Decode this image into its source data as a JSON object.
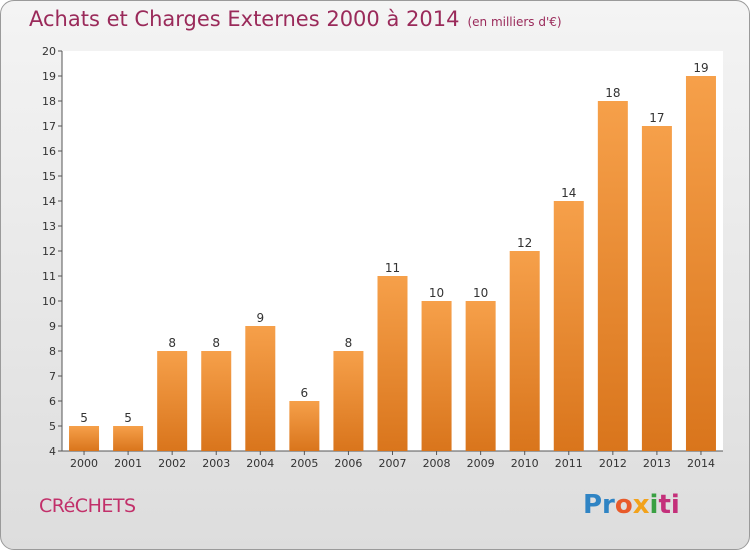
{
  "header": {
    "title": "Achats et Charges Externes 2000 à 2014",
    "subtitle": "(en milliers d'€)"
  },
  "footer": {
    "commune": "CRéCHETS",
    "logo_parts": [
      "Pr",
      "o",
      "x",
      "i",
      "ti"
    ]
  },
  "colors": {
    "bar_top": "#f6a04a",
    "bar_bottom": "#d9751c",
    "title": "#9a2a5a",
    "commune": "#c2306a"
  },
  "chart_data": {
    "type": "bar",
    "title": "Achats et Charges Externes 2000 à 2014",
    "subtitle": "(en milliers d'€)",
    "categories": [
      "2000",
      "2001",
      "2002",
      "2003",
      "2004",
      "2005",
      "2006",
      "2007",
      "2008",
      "2009",
      "2010",
      "2011",
      "2012",
      "2013",
      "2014"
    ],
    "values": [
      5,
      5,
      8,
      8,
      9,
      6,
      8,
      11,
      10,
      10,
      12,
      14,
      18,
      17,
      19
    ],
    "ylim": [
      4,
      20
    ],
    "yticks": [
      4,
      5,
      6,
      7,
      8,
      9,
      10,
      11,
      12,
      13,
      14,
      15,
      16,
      17,
      18,
      19,
      20
    ],
    "xlabel": "",
    "ylabel": "",
    "grid": false
  }
}
